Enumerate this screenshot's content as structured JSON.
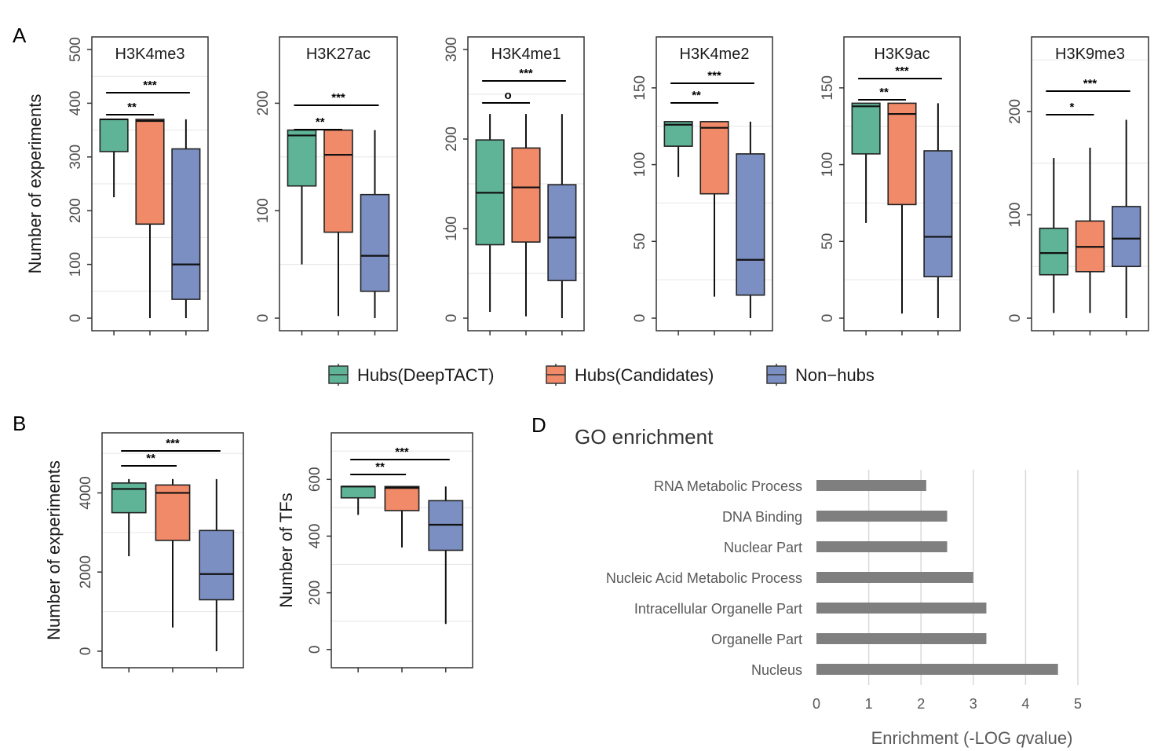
{
  "panel_labels": {
    "a": "A",
    "b": "B",
    "d": "D"
  },
  "colors": {
    "hubs_deeptact": "#5fb497",
    "hubs_candidates": "#f08a68",
    "non_hubs": "#7b8fc2",
    "bar": "#7f7f7f"
  },
  "chart_data": [
    {
      "type": "boxplot",
      "title": "H3K4me3",
      "ylabel": "Number of experiments",
      "ylim": [
        0,
        500
      ],
      "ticks": [
        0,
        100,
        200,
        300,
        400,
        500
      ],
      "boxes": [
        {
          "group": "Hubs(DeepTACT)",
          "min": 225,
          "q1": 310,
          "median": 370,
          "q3": 370,
          "max": 370
        },
        {
          "group": "Hubs(Candidates)",
          "min": 0,
          "q1": 175,
          "median": 367,
          "q3": 370,
          "max": 370
        },
        {
          "group": "Non-hubs",
          "min": 0,
          "q1": 35,
          "median": 100,
          "q3": 315,
          "max": 370
        }
      ],
      "significance": [
        {
          "from": 0,
          "to": 1,
          "label": "**"
        },
        {
          "from": 0,
          "to": 2,
          "label": "***"
        }
      ]
    },
    {
      "type": "boxplot",
      "title": "H3K27ac",
      "ylabel": "",
      "ylim": [
        0,
        250
      ],
      "ticks": [
        0,
        100,
        200
      ],
      "boxes": [
        {
          "group": "Hubs(DeepTACT)",
          "min": 50,
          "q1": 123,
          "median": 170,
          "q3": 175,
          "max": 175
        },
        {
          "group": "Hubs(Candidates)",
          "min": 2,
          "q1": 80,
          "median": 152,
          "q3": 175,
          "max": 175
        },
        {
          "group": "Non-hubs",
          "min": 0,
          "q1": 25,
          "median": 58,
          "q3": 115,
          "max": 175
        }
      ],
      "significance": [
        {
          "from": 0,
          "to": 1,
          "label": "**"
        },
        {
          "from": 0,
          "to": 2,
          "label": "***"
        }
      ]
    },
    {
      "type": "boxplot",
      "title": "H3K4me1",
      "ylabel": "",
      "ylim": [
        0,
        300
      ],
      "ticks": [
        0,
        100,
        200,
        300
      ],
      "boxes": [
        {
          "group": "Hubs(DeepTACT)",
          "min": 7,
          "q1": 82,
          "median": 140,
          "q3": 199,
          "max": 228
        },
        {
          "group": "Hubs(Candidates)",
          "min": 2,
          "q1": 85,
          "median": 146,
          "q3": 190,
          "max": 228
        },
        {
          "group": "Non-hubs",
          "min": 0,
          "q1": 42,
          "median": 90,
          "q3": 149,
          "max": 228
        }
      ],
      "significance": [
        {
          "from": 0,
          "to": 1,
          "label": "o"
        },
        {
          "from": 0,
          "to": 2,
          "label": "***"
        }
      ]
    },
    {
      "type": "boxplot",
      "title": "H3K4me2",
      "ylabel": "",
      "ylim": [
        0,
        175
      ],
      "ticks": [
        0,
        50,
        100,
        150
      ],
      "boxes": [
        {
          "group": "Hubs(DeepTACT)",
          "min": 92,
          "q1": 112,
          "median": 126,
          "q3": 128,
          "max": 128
        },
        {
          "group": "Hubs(Candidates)",
          "min": 14,
          "q1": 81,
          "median": 124,
          "q3": 128,
          "max": 128
        },
        {
          "group": "Non-hubs",
          "min": 0,
          "q1": 15,
          "median": 38,
          "q3": 107,
          "max": 128
        }
      ],
      "significance": [
        {
          "from": 0,
          "to": 1,
          "label": "**"
        },
        {
          "from": 0,
          "to": 2,
          "label": "***"
        }
      ]
    },
    {
      "type": "boxplot",
      "title": "H3K9ac",
      "ylabel": "",
      "ylim": [
        0,
        175
      ],
      "ticks": [
        0,
        50,
        100,
        150
      ],
      "boxes": [
        {
          "group": "Hubs(DeepTACT)",
          "min": 62,
          "q1": 107,
          "median": 138,
          "q3": 140,
          "max": 140
        },
        {
          "group": "Hubs(Candidates)",
          "min": 3,
          "q1": 74,
          "median": 133,
          "q3": 140,
          "max": 140
        },
        {
          "group": "Non-hubs",
          "min": 0,
          "q1": 27,
          "median": 53,
          "q3": 109,
          "max": 140
        }
      ],
      "significance": [
        {
          "from": 0,
          "to": 1,
          "label": "**"
        },
        {
          "from": 0,
          "to": 2,
          "label": "***"
        }
      ]
    },
    {
      "type": "boxplot",
      "title": "H3K9me3",
      "ylabel": "",
      "ylim": [
        0,
        260
      ],
      "ticks": [
        0,
        100,
        200
      ],
      "boxes": [
        {
          "group": "Hubs(DeepTACT)",
          "min": 5,
          "q1": 42,
          "median": 63,
          "q3": 87,
          "max": 155
        },
        {
          "group": "Hubs(Candidates)",
          "min": 5,
          "q1": 45,
          "median": 69,
          "q3": 94,
          "max": 165
        },
        {
          "group": "Non-hubs",
          "min": 0,
          "q1": 50,
          "median": 77,
          "q3": 108,
          "max": 192
        }
      ],
      "significance": [
        {
          "from": 0,
          "to": 1,
          "label": "*"
        },
        {
          "from": 0,
          "to": 2,
          "label": "***"
        }
      ]
    },
    {
      "type": "boxplot",
      "title": "",
      "ylabel": "Number of experiments",
      "ylim": [
        -100,
        5200
      ],
      "ticks": [
        0,
        2000,
        4000
      ],
      "boxes": [
        {
          "group": "Hubs(DeepTACT)",
          "min": 2400,
          "q1": 3500,
          "median": 4100,
          "q3": 4250,
          "max": 4350
        },
        {
          "group": "Hubs(Candidates)",
          "min": 600,
          "q1": 2800,
          "median": 4000,
          "q3": 4200,
          "max": 4350
        },
        {
          "group": "Non-hubs",
          "min": 0,
          "q1": 1300,
          "median": 1950,
          "q3": 3050,
          "max": 4350
        }
      ],
      "significance": [
        {
          "from": 0,
          "to": 1,
          "label": "**"
        },
        {
          "from": 0,
          "to": 2,
          "label": "***"
        }
      ]
    },
    {
      "type": "boxplot",
      "title": "",
      "ylabel": "Number of TFs",
      "ylim": [
        -20,
        720
      ],
      "ticks": [
        0,
        200,
        400,
        600
      ],
      "boxes": [
        {
          "group": "Hubs(DeepTACT)",
          "min": 475,
          "q1": 535,
          "median": 575,
          "q3": 575,
          "max": 575
        },
        {
          "group": "Hubs(Candidates)",
          "min": 360,
          "q1": 490,
          "median": 570,
          "q3": 575,
          "max": 575
        },
        {
          "group": "Non-hubs",
          "min": 90,
          "q1": 350,
          "median": 440,
          "q3": 525,
          "max": 575
        }
      ],
      "significance": [
        {
          "from": 0,
          "to": 1,
          "label": "**"
        },
        {
          "from": 0,
          "to": 2,
          "label": "***"
        }
      ]
    },
    {
      "type": "bar",
      "orientation": "horizontal",
      "title": "GO enrichment",
      "xlabel_prefix": "Enrichment (-LOG ",
      "xlabel_italic": "q",
      "xlabel_suffix": "value)",
      "xlim": [
        0,
        5
      ],
      "xticks": [
        0,
        1,
        2,
        3,
        4,
        5
      ],
      "categories": [
        "RNA Metabolic Process",
        "DNA Binding",
        "Nuclear Part",
        "Nucleic Acid Metabolic Process",
        "Intracellular Organelle Part",
        "Organelle Part",
        "Nucleus"
      ],
      "values": [
        2.1,
        2.5,
        2.5,
        3.0,
        3.25,
        3.25,
        4.62
      ]
    }
  ],
  "legend": [
    "Hubs(DeepTACT)",
    "Hubs(Candidates)",
    "Non−hubs"
  ]
}
